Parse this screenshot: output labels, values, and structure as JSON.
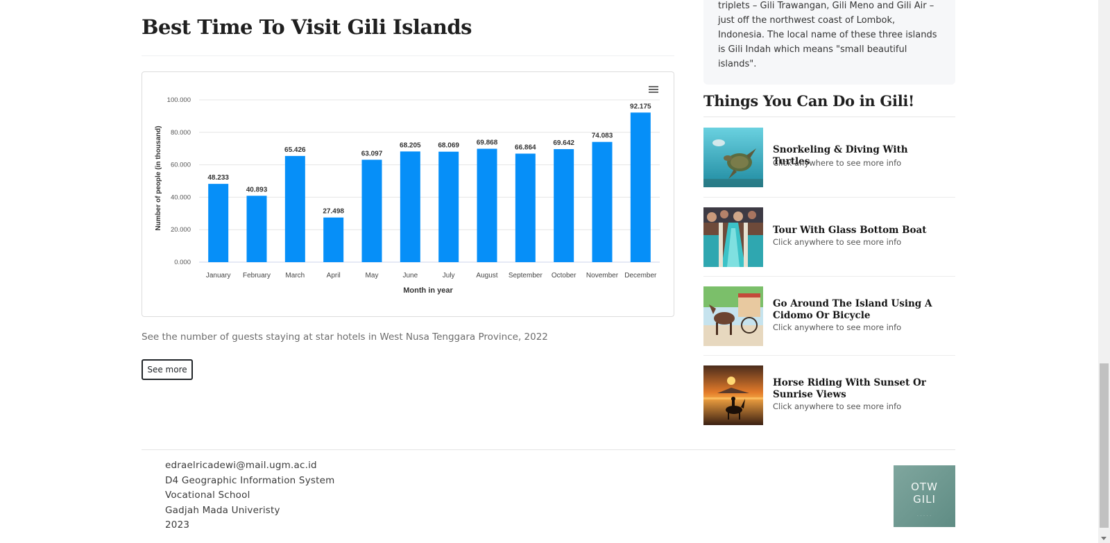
{
  "article": {
    "title": "Best Time To Visit Gili Islands",
    "caption": "See the number of guests staying at star hotels in West Nusa Tenggara Province, 2022",
    "see_more_label": "See more"
  },
  "chart_data": {
    "type": "bar",
    "xlabel": "Month in year",
    "ylabel": "Number of people (in thousand)",
    "ylim": [
      0,
      100
    ],
    "yticks": [
      "0.000",
      "20.000",
      "40.000",
      "60.000",
      "80.000",
      "100.000"
    ],
    "ytick_values": [
      0,
      20,
      40,
      60,
      80,
      100
    ],
    "categories": [
      "January",
      "February",
      "March",
      "April",
      "May",
      "June",
      "July",
      "August",
      "September",
      "October",
      "November",
      "December"
    ],
    "values": [
      48.233,
      40.893,
      65.426,
      27.498,
      63.097,
      68.205,
      68.069,
      69.868,
      66.864,
      69.642,
      74.083,
      92.175
    ],
    "value_labels": [
      "48.233",
      "40.893",
      "65.426",
      "27.498",
      "63.097",
      "68.205",
      "68.069",
      "69.868",
      "66.864",
      "69.642",
      "74.083",
      "92.175"
    ],
    "bar_color": "#068ff8",
    "grid": true,
    "legend": "none"
  },
  "sidebar": {
    "about_text": "triplets – Gili Trawangan, Gili Meno and Gili Air – just off the northwest coast of Lombok, Indonesia. The local name of these three islands is Gili Indah which means \"small beautiful islands\".",
    "things_title": "Things You Can Do in Gili!",
    "activities": [
      {
        "title": "Snorkeling & Diving With Turtles",
        "hint": "Click anywhere to see more info"
      },
      {
        "title": "Tour With Glass Bottom Boat",
        "hint": "Click anywhere to see more info"
      },
      {
        "title": "Go Around The Island Using A Cidomo Or Bicycle",
        "hint": "Click anywhere to see more info"
      },
      {
        "title": "Horse Riding With Sunset Or Sunrise Views",
        "hint": "Click anywhere to see more info"
      }
    ]
  },
  "footer": {
    "email": "edraelricadewi@mail.ugm.ac.id",
    "program": "D4 Geographic Information System",
    "school": "Vocational School",
    "university": "Gadjah Mada Univeristy",
    "year": "2023",
    "logo_text_1": "OTW",
    "logo_text_2": "GILI"
  },
  "icons": {
    "chart_menu": "hamburger-menu-icon",
    "scroll_down": "chevron-down-icon"
  }
}
